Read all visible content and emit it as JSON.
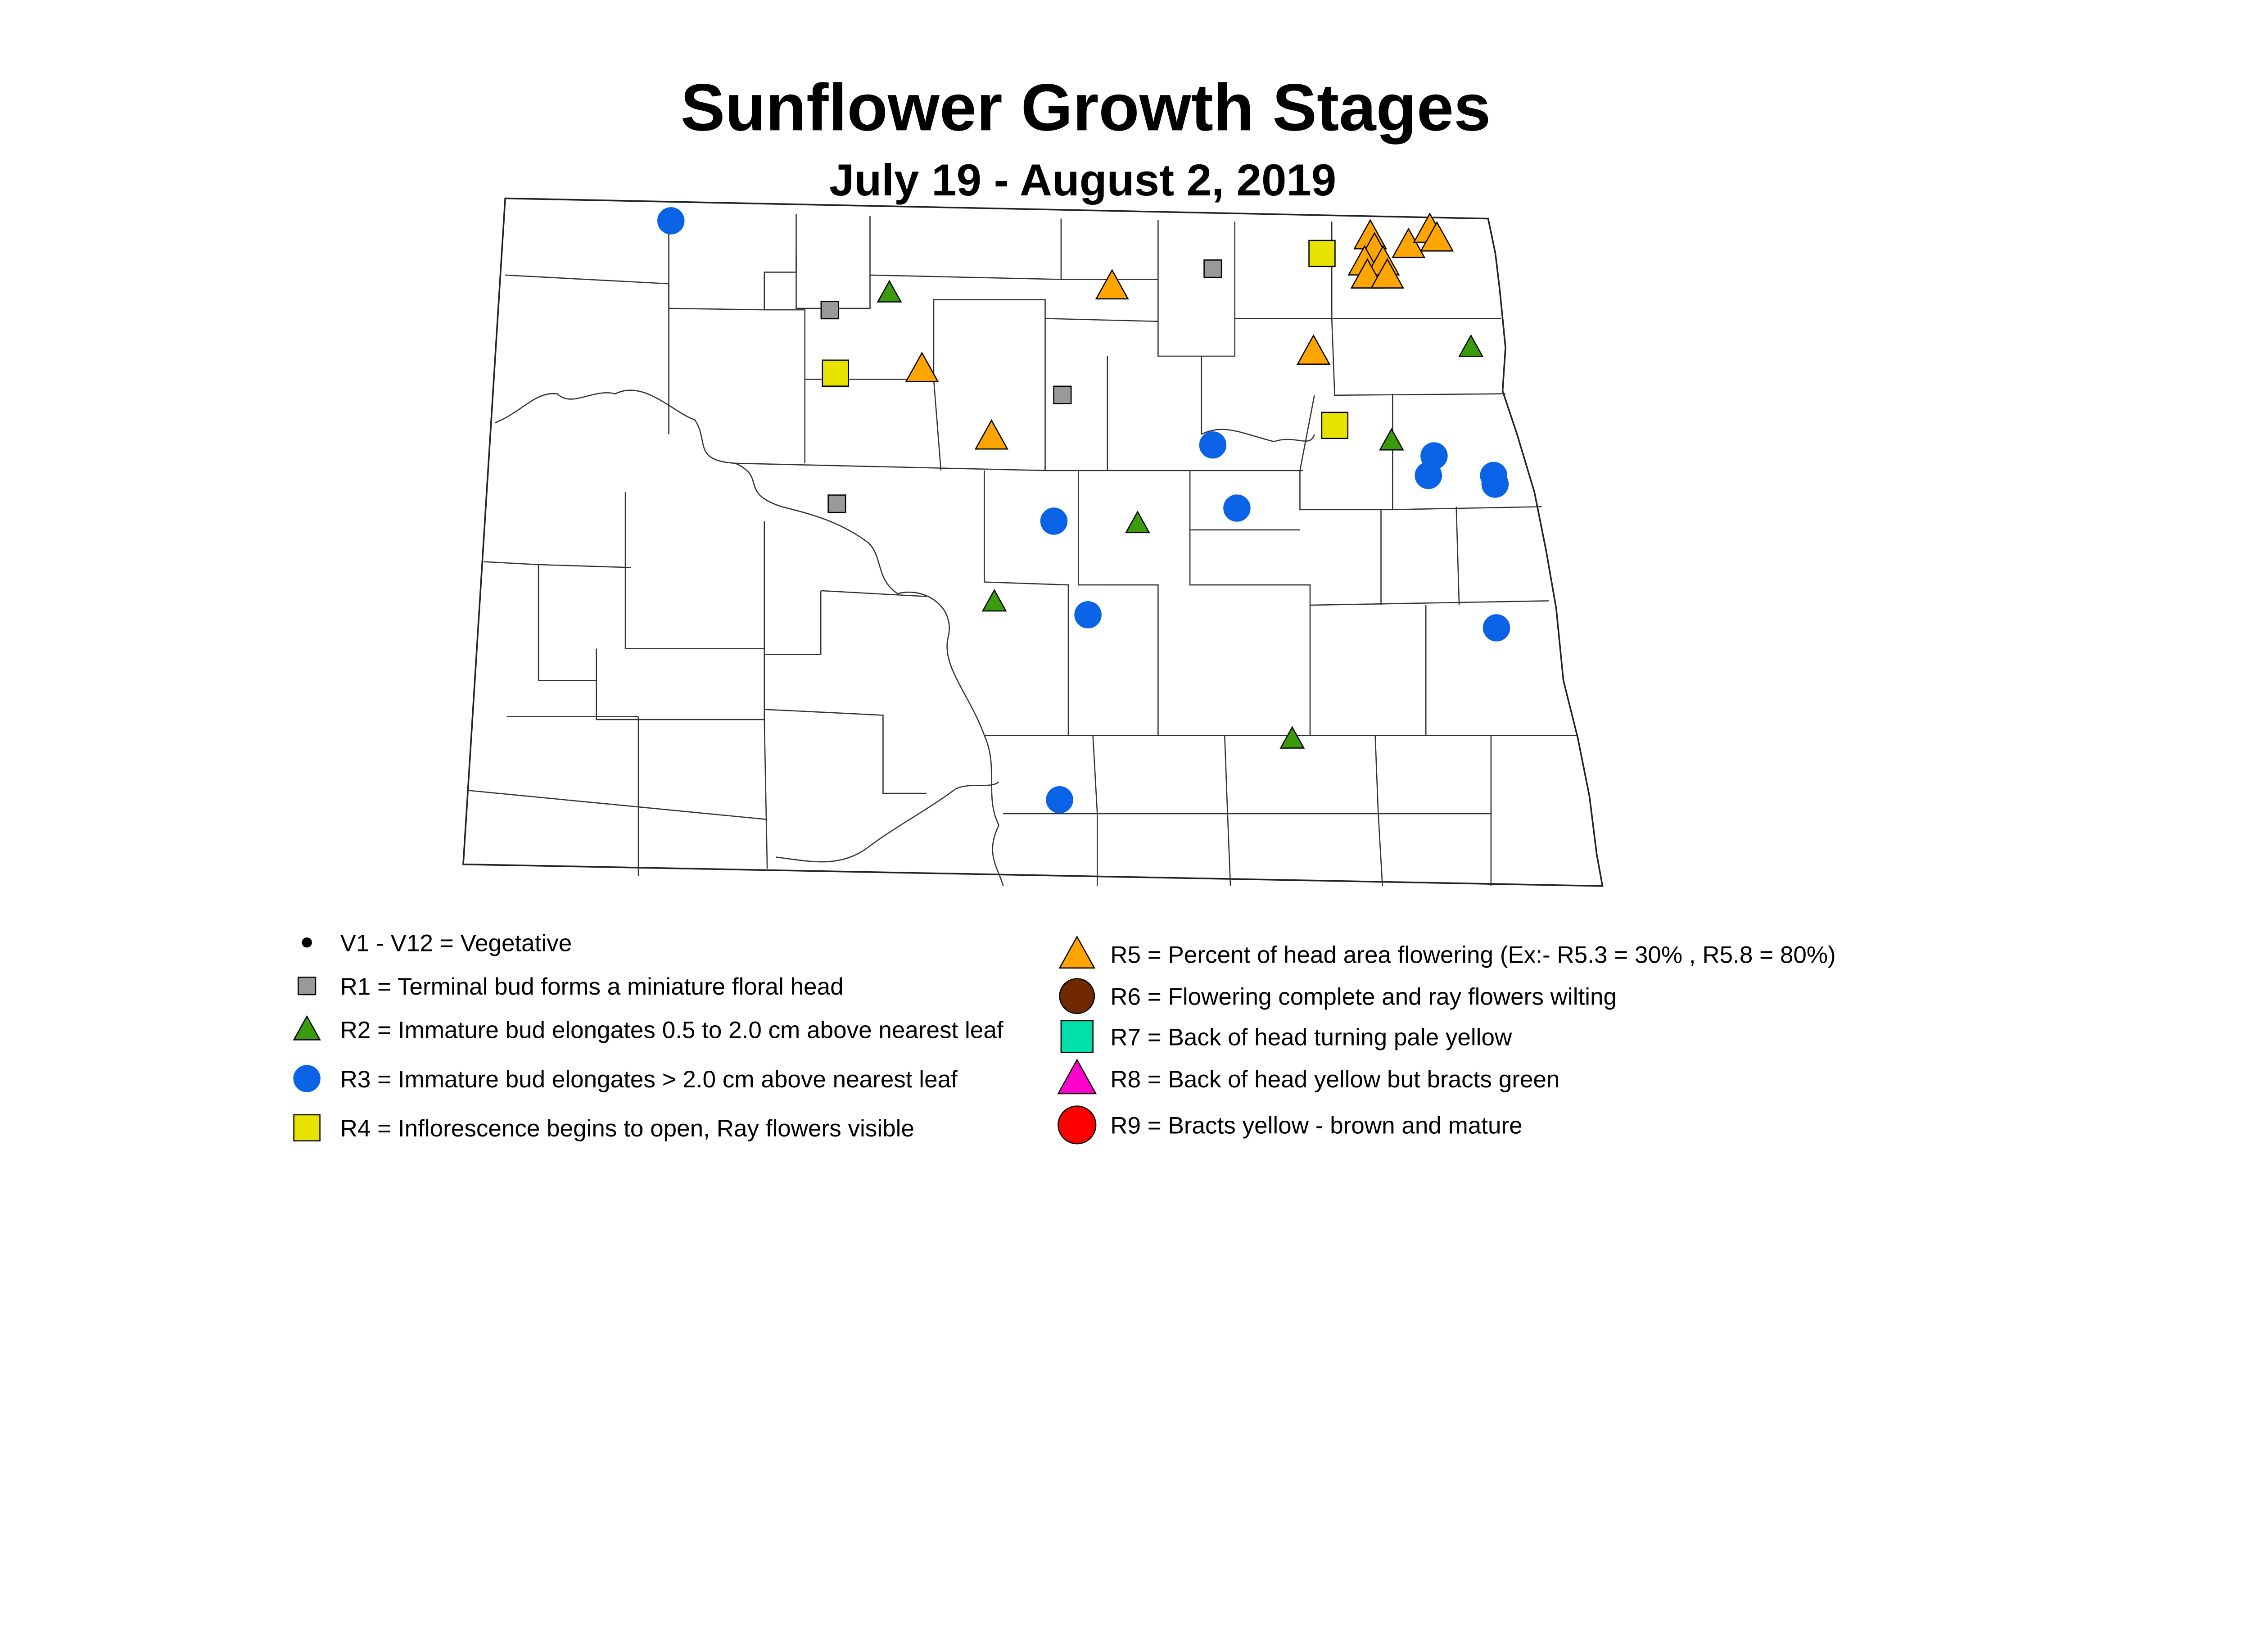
{
  "title": "Sunflower Growth Stages",
  "subtitle": "July 19 - August 2, 2019",
  "colors": {
    "V": "#000000",
    "R1": "#999999",
    "R2": "#3a9c0c",
    "R3": "#0a62e6",
    "R4": "#e8e200",
    "R5": "#ffa500",
    "R6": "#702800",
    "R7": "#00e0a8",
    "R8": "#ff00cc",
    "R9": "#ff0000"
  },
  "legend": {
    "left": [
      {
        "stage": "V",
        "shape": "dot",
        "label": "V1 - V12 = Vegetative"
      },
      {
        "stage": "R1",
        "shape": "square",
        "label": "R1 = Terminal bud forms a miniature floral head"
      },
      {
        "stage": "R2",
        "shape": "triangle",
        "label": "R2 = Immature bud elongates 0.5 to 2.0 cm above nearest leaf"
      },
      {
        "stage": "R3",
        "shape": "circle",
        "label": "R3 = Immature bud elongates > 2.0 cm above nearest leaf"
      },
      {
        "stage": "R4",
        "shape": "square",
        "label": "R4 = Inflorescence begins to open, Ray flowers visible"
      }
    ],
    "right": [
      {
        "stage": "R5",
        "shape": "triangle",
        "label": "R5 = Percent of head area flowering (Ex:- R5.3 = 30% , R5.8 = 80%)"
      },
      {
        "stage": "R6",
        "shape": "circle",
        "label": "R6 = Flowering complete and ray flowers wilting"
      },
      {
        "stage": "R7",
        "shape": "square",
        "label": "R7 = Back of head turning pale yellow"
      },
      {
        "stage": "R8",
        "shape": "triangle",
        "label": "R8 = Back of head yellow but bracts green"
      },
      {
        "stage": "R9",
        "shape": "circle",
        "label": "R9 = Bracts yellow - brown and mature"
      }
    ]
  },
  "observations": [
    {
      "stage": "R3",
      "lon": -102.79,
      "lat": 48.95
    },
    {
      "stage": "R3",
      "lon": -98.97,
      "lat": 47.92
    },
    {
      "stage": "R3",
      "lon": -97.41,
      "lat": 47.87
    },
    {
      "stage": "R3",
      "lon": -97.45,
      "lat": 47.78
    },
    {
      "stage": "R3",
      "lon": -96.99,
      "lat": 47.78
    },
    {
      "stage": "R3",
      "lon": -96.98,
      "lat": 47.74
    },
    {
      "stage": "R3",
      "lon": -100.09,
      "lat": 47.57
    },
    {
      "stage": "R3",
      "lon": -98.8,
      "lat": 47.63
    },
    {
      "stage": "R3",
      "lon": -99.85,
      "lat": 47.14
    },
    {
      "stage": "R3",
      "lon": -96.97,
      "lat": 47.08
    },
    {
      "stage": "R3",
      "lon": -100.05,
      "lat": 46.29
    },
    {
      "stage": "R2",
      "lon": -101.25,
      "lat": 48.62
    },
    {
      "stage": "R2",
      "lon": -97.15,
      "lat": 48.37
    },
    {
      "stage": "R2",
      "lon": -97.71,
      "lat": 47.94
    },
    {
      "stage": "R2",
      "lon": -99.5,
      "lat": 47.56
    },
    {
      "stage": "R2",
      "lon": -100.51,
      "lat": 47.2
    },
    {
      "stage": "R2",
      "lon": -98.41,
      "lat": 46.57
    },
    {
      "stage": "R1",
      "lon": -98.97,
      "lat": 48.73
    },
    {
      "stage": "R1",
      "lon": -101.67,
      "lat": 48.54
    },
    {
      "stage": "R1",
      "lon": -100.03,
      "lat": 48.15
    },
    {
      "stage": "R1",
      "lon": -101.62,
      "lat": 47.65
    },
    {
      "stage": "R4",
      "lon": -98.2,
      "lat": 48.8
    },
    {
      "stage": "R4",
      "lon": -101.63,
      "lat": 48.25
    },
    {
      "stage": "R4",
      "lon": -98.11,
      "lat": 48.01
    },
    {
      "stage": "R5",
      "lon": -99.68,
      "lat": 48.65
    },
    {
      "stage": "R5",
      "lon": -101.02,
      "lat": 48.27
    },
    {
      "stage": "R5",
      "lon": -100.53,
      "lat": 47.96
    },
    {
      "stage": "R5",
      "lon": -98.26,
      "lat": 48.35
    },
    {
      "stage": "R5",
      "lon": -97.86,
      "lat": 48.88
    },
    {
      "stage": "R5",
      "lon": -97.83,
      "lat": 48.82
    },
    {
      "stage": "R5",
      "lon": -97.9,
      "lat": 48.76
    },
    {
      "stage": "R5",
      "lon": -97.77,
      "lat": 48.76
    },
    {
      "stage": "R5",
      "lon": -97.88,
      "lat": 48.7
    },
    {
      "stage": "R5",
      "lon": -97.74,
      "lat": 48.7
    },
    {
      "stage": "R5",
      "lon": -97.59,
      "lat": 48.84
    },
    {
      "stage": "R5",
      "lon": -97.44,
      "lat": 48.91
    },
    {
      "stage": "R5",
      "lon": -97.39,
      "lat": 48.87
    }
  ]
}
